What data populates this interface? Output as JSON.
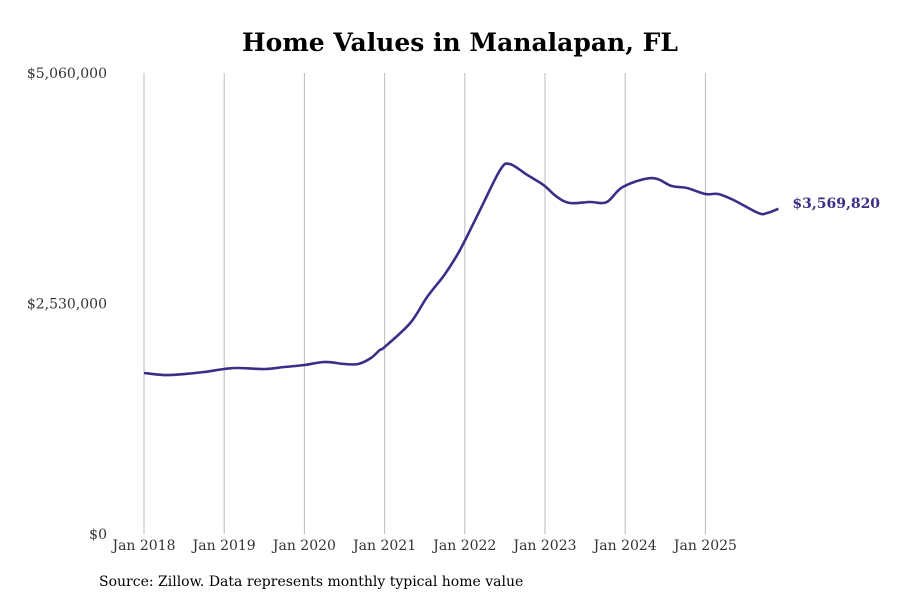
{
  "chart_data": {
    "type": "line",
    "title": "Home Values in Manalapan, FL",
    "xlabel": "",
    "ylabel": "",
    "ylim": [
      0,
      5060000
    ],
    "xlim": [
      2017.75,
      2026.6
    ],
    "yticks": [
      {
        "value": 0,
        "label": "$0"
      },
      {
        "value": 2530000,
        "label": "$2,530,000"
      },
      {
        "value": 5060000,
        "label": "$5,060,000"
      }
    ],
    "xticks": [
      {
        "value": 2018,
        "label": "Jan 2018"
      },
      {
        "value": 2019,
        "label": "Jan 2019"
      },
      {
        "value": 2020,
        "label": "Jan 2020"
      },
      {
        "value": 2021,
        "label": "Jan 2021"
      },
      {
        "value": 2022,
        "label": "Jan 2022"
      },
      {
        "value": 2023,
        "label": "Jan 2023"
      },
      {
        "value": 2024,
        "label": "Jan 2024"
      },
      {
        "value": 2025,
        "label": "Jan 2025"
      }
    ],
    "grid": "vertical",
    "series": [
      {
        "name": "Typical home value",
        "color": "#3a2f86",
        "x": [
          2018.0,
          2018.25,
          2018.5,
          2018.75,
          2019.0,
          2019.17,
          2019.5,
          2019.75,
          2020.0,
          2020.25,
          2020.5,
          2020.67,
          2020.83,
          2020.94,
          2021.0,
          2021.32,
          2021.53,
          2021.75,
          2021.94,
          2022.19,
          2022.44,
          2022.56,
          2022.78,
          2022.98,
          2023.15,
          2023.31,
          2023.56,
          2023.77,
          2023.97,
          2024.33,
          2024.58,
          2024.77,
          2025.0,
          2025.16,
          2025.35,
          2025.66,
          2025.77,
          2025.91
        ],
        "values": [
          1767000,
          1745000,
          1756000,
          1778000,
          1811000,
          1822000,
          1811000,
          1833000,
          1855000,
          1888000,
          1866000,
          1866000,
          1932000,
          2020000,
          2052000,
          2316000,
          2601000,
          2850000,
          3117000,
          3556000,
          3995000,
          4061000,
          3940000,
          3831000,
          3700000,
          3633000,
          3644000,
          3644000,
          3809000,
          3907000,
          3820000,
          3798000,
          3732000,
          3732000,
          3666000,
          3523000,
          3523000,
          3569820
        ]
      }
    ],
    "end_label": "$3,569,820",
    "source": "Source: Zillow. Data represents monthly typical home value"
  }
}
